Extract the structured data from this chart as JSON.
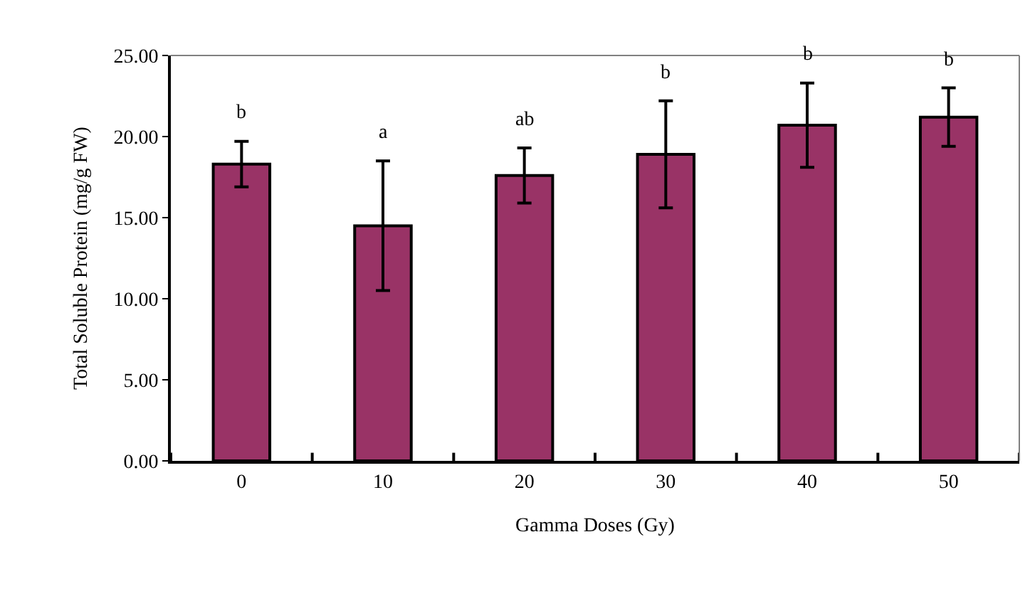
{
  "chart_data": {
    "type": "bar",
    "xlabel": "Gamma Doses (Gy)",
    "ylabel": "Total Soluble Protein (mg/g FW)",
    "categories": [
      "0",
      "10",
      "20",
      "30",
      "40",
      "50"
    ],
    "values": [
      18.3,
      14.5,
      17.6,
      18.9,
      20.7,
      21.2
    ],
    "errors": [
      1.4,
      4.0,
      1.7,
      3.3,
      2.6,
      1.8
    ],
    "color": "#993366",
    "ylim": [
      0,
      25
    ],
    "yticks": [
      {
        "value": 0,
        "label": "0.00"
      },
      {
        "value": 5,
        "label": "5.00"
      },
      {
        "value": 10,
        "label": "10.00"
      },
      {
        "value": 15,
        "label": "15.00"
      },
      {
        "value": 20,
        "label": "20.00"
      },
      {
        "value": 25,
        "label": "25.00"
      }
    ],
    "legend": false,
    "annotations": [
      "b",
      "a",
      "ab",
      "b",
      "b",
      "b"
    ]
  }
}
